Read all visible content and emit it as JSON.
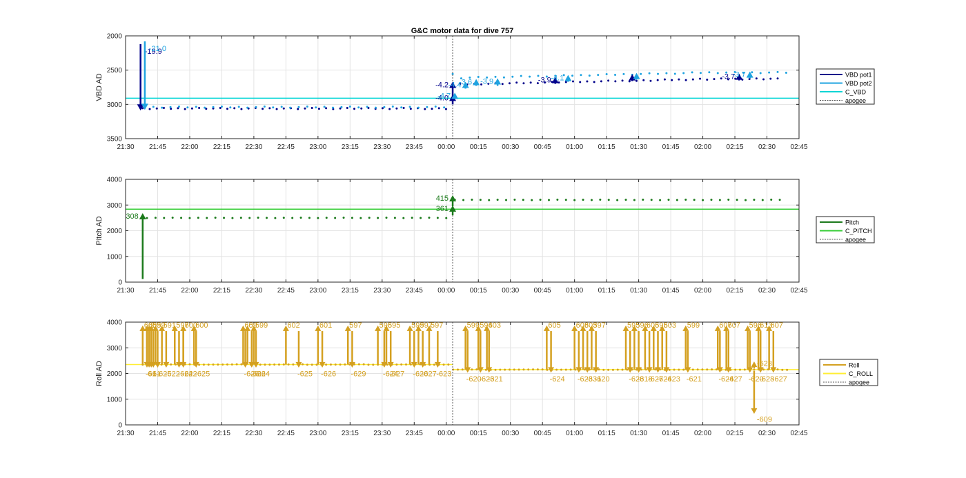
{
  "figure": {
    "title": "G&C motor data for dive 757"
  },
  "chart_data": [
    {
      "type": "line",
      "ylabel": "VBD AD",
      "ylim": [
        2000,
        3500
      ],
      "y_reversed": true,
      "yticks": [
        2000,
        2500,
        3000,
        3500
      ],
      "xlim": [
        "21:30",
        "02:45"
      ],
      "xticks": [
        "21:30",
        "21:45",
        "22:00",
        "22:15",
        "22:30",
        "22:45",
        "23:00",
        "23:15",
        "23:30",
        "23:45",
        "00:00",
        "00:15",
        "00:30",
        "00:45",
        "01:00",
        "01:15",
        "01:30",
        "01:45",
        "02:00",
        "02:15",
        "02:30",
        "02:45"
      ],
      "grid": true,
      "legend_position": "right",
      "legend": [
        {
          "label": "VBD pot1",
          "color": "#00008b",
          "style": "solid"
        },
        {
          "label": "VBD pot2",
          "color": "#1fa3e0",
          "style": "solid"
        },
        {
          "label": "C_VBD",
          "color": "#00d5d5",
          "style": "solid"
        },
        {
          "label": "apogee",
          "color": "#555555",
          "style": "dotted"
        }
      ],
      "reference_lines": [
        {
          "name": "C_VBD",
          "y": 2910,
          "color": "#00d5d5"
        }
      ],
      "apogee_x": "00:03",
      "series": [
        {
          "name": "VBD pot1",
          "color": "#00008b",
          "x_range": [
            "21:38",
            "02:38"
          ],
          "values_before_apogee": 3060,
          "values_after_apogee": 2630
        },
        {
          "name": "VBD pot2",
          "color": "#1fa3e0",
          "x_range": [
            "21:39",
            "02:40"
          ],
          "values_before_apogee": 3040,
          "values_after_apogee": 2560
        }
      ],
      "moves": [
        {
          "x": "21:37",
          "from": 2120,
          "to": 3040,
          "color": "#00008b",
          "label": "-19.9"
        },
        {
          "x": "21:39",
          "from": 2080,
          "to": 3030,
          "color": "#1fa3e0",
          "label": "-21.0"
        },
        {
          "x": "00:03",
          "from": 3000,
          "to": 2910,
          "color": "#00008b",
          "label": "-4.0"
        },
        {
          "x": "00:03",
          "from": 2890,
          "to": 2720,
          "color": "#00008b",
          "label": "-4.2"
        },
        {
          "x": "00:04",
          "from": 2920,
          "to": 2880,
          "color": "#1fa3e0",
          "label": "-4.7"
        },
        {
          "x": "00:09",
          "from": 2770,
          "to": 2720,
          "color": "#1fa3e0",
          "label": "-4.4"
        },
        {
          "x": "00:14",
          "from": 2730,
          "to": 2680,
          "color": "#1fa3e0",
          "label": "-3.6"
        },
        {
          "x": "00:24",
          "from": 2730,
          "to": 2670,
          "color": "#1fa3e0",
          "label": "-3.9"
        },
        {
          "x": "00:51",
          "from": 2700,
          "to": 2650,
          "color": "#00008b",
          "label": "-3.9"
        },
        {
          "x": "00:57",
          "from": 2670,
          "to": 2620,
          "color": "#1fa3e0",
          "label": "-4.1"
        },
        {
          "x": "01:27",
          "from": 2660,
          "to": 2610,
          "color": "#00008b",
          "label": ""
        },
        {
          "x": "01:29",
          "from": 2640,
          "to": 2590,
          "color": "#1fa3e0",
          "label": ""
        },
        {
          "x": "02:17",
          "from": 2650,
          "to": 2600,
          "color": "#00008b",
          "label": "-3.7"
        },
        {
          "x": "02:22",
          "from": 2620,
          "to": 2570,
          "color": "#1fa3e0",
          "label": "-3.7"
        }
      ]
    },
    {
      "type": "line",
      "ylabel": "Pitch AD",
      "ylim": [
        0,
        4000
      ],
      "yticks": [
        0,
        1000,
        2000,
        3000,
        4000
      ],
      "xlim": [
        "21:30",
        "02:45"
      ],
      "xticks": [
        "21:30",
        "21:45",
        "22:00",
        "22:15",
        "22:30",
        "22:45",
        "23:00",
        "23:15",
        "23:30",
        "23:45",
        "00:00",
        "00:15",
        "00:30",
        "00:45",
        "01:00",
        "01:15",
        "01:30",
        "01:45",
        "02:00",
        "02:15",
        "02:30",
        "02:45"
      ],
      "grid": true,
      "legend_position": "right",
      "legend": [
        {
          "label": "Pitch",
          "color": "#1b7a1b",
          "style": "solid"
        },
        {
          "label": "C_PITCH",
          "color": "#33cc33",
          "style": "solid"
        },
        {
          "label": "apogee",
          "color": "#555555",
          "style": "dotted"
        }
      ],
      "reference_lines": [
        {
          "name": "C_PITCH",
          "y": 2840,
          "color": "#33cc33"
        }
      ],
      "apogee_x": "00:03",
      "series": [
        {
          "name": "Pitch",
          "color": "#1b7a1b",
          "x_range": [
            "21:40",
            "02:38"
          ],
          "values_before_apogee": 2500,
          "values_after_apogee": 3200
        }
      ],
      "moves": [
        {
          "x": "21:38",
          "from": 120,
          "to": 2550,
          "color": "#1b7a1b",
          "label": "308"
        },
        {
          "x": "00:03",
          "from": 2600,
          "to": 2850,
          "color": "#1b7a1b",
          "label": "361"
        },
        {
          "x": "00:03",
          "from": 2950,
          "to": 3250,
          "color": "#1b7a1b",
          "label": "415"
        }
      ]
    },
    {
      "type": "line",
      "ylabel": "Roll AD",
      "ylim": [
        0,
        4000
      ],
      "yticks": [
        0,
        1000,
        2000,
        3000,
        4000
      ],
      "xlim": [
        "21:30",
        "02:45"
      ],
      "xticks": [
        "21:30",
        "21:45",
        "22:00",
        "22:15",
        "22:30",
        "22:45",
        "23:00",
        "23:15",
        "23:30",
        "23:45",
        "00:00",
        "00:15",
        "00:30",
        "00:45",
        "01:00",
        "01:15",
        "01:30",
        "01:45",
        "02:00",
        "02:15",
        "02:30",
        "02:45"
      ],
      "grid": true,
      "legend_position": "right",
      "legend": [
        {
          "label": "Roll",
          "color": "#d4a020",
          "style": "solid"
        },
        {
          "label": "C_ROLL",
          "color": "#ffee33",
          "style": "solid"
        },
        {
          "label": "apogee",
          "color": "#555555",
          "style": "dotted"
        }
      ],
      "reference_lines": [
        {
          "name": "C_ROLL (before apogee)",
          "y": 2350,
          "x_range": [
            "21:30",
            "00:03"
          ],
          "color": "#ffee33"
        },
        {
          "name": "C_ROLL (after apogee)",
          "y": 2150,
          "x_range": [
            "00:03",
            "02:45"
          ],
          "color": "#ffee33"
        }
      ],
      "apogee_x": "00:03",
      "series": [
        {
          "name": "Roll",
          "color": "#d4a020",
          "x_range": [
            "21:38",
            "02:40"
          ],
          "values_before_apogee": 2350,
          "values_after_apogee": 2150
        }
      ],
      "up_labels": [
        {
          "x": "21:38",
          "label": "605"
        },
        {
          "x": "21:40",
          "label": "60"
        },
        {
          "x": "21:41",
          "label": "2"
        },
        {
          "x": "21:42",
          "label": "59"
        },
        {
          "x": "21:44",
          "label": "59"
        },
        {
          "x": "21:47",
          "label": "591"
        },
        {
          "x": "21:53",
          "label": "597"
        },
        {
          "x": "21:57",
          "label": "600"
        },
        {
          "x": "22:02",
          "label": "600"
        },
        {
          "x": "22:25",
          "label": "60"
        },
        {
          "x": "22:27",
          "label": "59"
        },
        {
          "x": "22:30",
          "label": "599"
        },
        {
          "x": "22:45",
          "label": "602"
        },
        {
          "x": "23:00",
          "label": "601"
        },
        {
          "x": "23:14",
          "label": "597"
        },
        {
          "x": "23:28",
          "label": "596"
        },
        {
          "x": "23:32",
          "label": "595"
        },
        {
          "x": "23:43",
          "label": "599"
        },
        {
          "x": "23:47",
          "label": "597"
        },
        {
          "x": "23:52",
          "label": "597"
        },
        {
          "x": "00:09",
          "label": "599"
        },
        {
          "x": "00:15",
          "label": "594"
        },
        {
          "x": "00:19",
          "label": "603"
        },
        {
          "x": "00:47",
          "label": "605"
        },
        {
          "x": "01:00",
          "label": "608"
        },
        {
          "x": "01:04",
          "label": "603"
        },
        {
          "x": "01:08",
          "label": "597"
        },
        {
          "x": "01:24",
          "label": "595"
        },
        {
          "x": "01:28",
          "label": "596"
        },
        {
          "x": "01:33",
          "label": "606"
        },
        {
          "x": "01:37",
          "label": "595"
        },
        {
          "x": "01:41",
          "label": "603"
        },
        {
          "x": "01:52",
          "label": "599"
        },
        {
          "x": "02:07",
          "label": "607"
        },
        {
          "x": "02:11",
          "label": "607"
        },
        {
          "x": "02:21",
          "label": "596"
        },
        {
          "x": "02:26",
          "label": "613"
        },
        {
          "x": "02:31",
          "label": "607"
        }
      ],
      "down_labels": [
        {
          "x": "21:40",
          "label": "-61"
        },
        {
          "x": "21:41",
          "label": "6"
        },
        {
          "x": "21:42",
          "label": "-61"
        },
        {
          "x": "21:43",
          "label": "1"
        },
        {
          "x": "21:45",
          "label": "-625"
        },
        {
          "x": "21:49",
          "label": "-622"
        },
        {
          "x": "21:55",
          "label": "-624"
        },
        {
          "x": "21:57",
          "label": "-622"
        },
        {
          "x": "22:03",
          "label": "-625"
        },
        {
          "x": "22:26",
          "label": "-626"
        },
        {
          "x": "22:29",
          "label": "-626"
        },
        {
          "x": "22:31",
          "label": "-624"
        },
        {
          "x": "22:51",
          "label": "-625"
        },
        {
          "x": "23:02",
          "label": "-626"
        },
        {
          "x": "23:16",
          "label": "-629"
        },
        {
          "x": "23:31",
          "label": "-624"
        },
        {
          "x": "23:34",
          "label": "-627"
        },
        {
          "x": "23:45",
          "label": "-620"
        },
        {
          "x": "23:49",
          "label": "-627"
        },
        {
          "x": "23:56",
          "label": "-623"
        },
        {
          "x": "00:10",
          "label": "-620"
        },
        {
          "x": "00:16",
          "label": "-623"
        },
        {
          "x": "00:20",
          "label": "-621"
        },
        {
          "x": "00:49",
          "label": "-624"
        },
        {
          "x": "01:02",
          "label": "-623"
        },
        {
          "x": "01:06",
          "label": "-631"
        },
        {
          "x": "01:10",
          "label": "-620"
        },
        {
          "x": "01:26",
          "label": "-628"
        },
        {
          "x": "01:30",
          "label": "-618"
        },
        {
          "x": "01:35",
          "label": "-627"
        },
        {
          "x": "01:39",
          "label": "-624"
        },
        {
          "x": "01:43",
          "label": "-623"
        },
        {
          "x": "01:53",
          "label": "-621"
        },
        {
          "x": "02:08",
          "label": "-624"
        },
        {
          "x": "02:12",
          "label": "-627"
        },
        {
          "x": "02:22",
          "label": "-620"
        },
        {
          "x": "02:27",
          "label": "-628"
        },
        {
          "x": "02:33",
          "label": "-627"
        }
      ],
      "special_moves": [
        {
          "x": "02:24",
          "from": 2100,
          "to": 550,
          "label": "-609"
        },
        {
          "x": "02:24",
          "from": 2200,
          "to": 2350,
          "label": "-623"
        }
      ]
    }
  ]
}
